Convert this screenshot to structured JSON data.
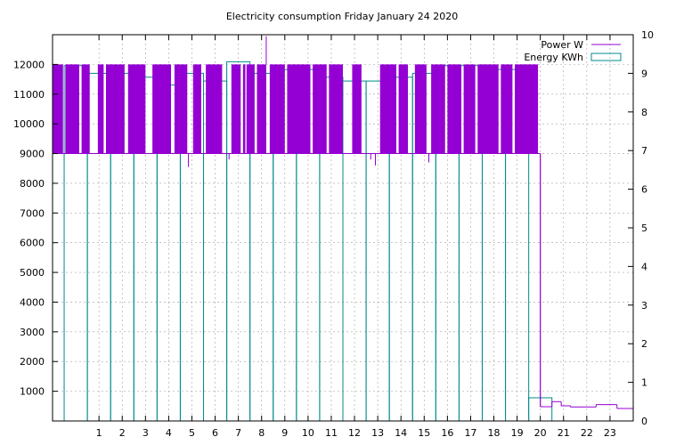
{
  "chart_data": {
    "type": "bar",
    "title": "Electricity consumption Friday January 24 2020",
    "xlim": [
      -1,
      24
    ],
    "xticks": [
      1,
      2,
      3,
      4,
      5,
      6,
      7,
      8,
      9,
      10,
      11,
      12,
      13,
      14,
      15,
      16,
      17,
      18,
      19,
      20,
      21,
      22,
      23
    ],
    "ylim_left": [
      0,
      13000
    ],
    "yticks_left": [
      1000,
      2000,
      3000,
      4000,
      5000,
      6000,
      7000,
      8000,
      9000,
      10000,
      11000,
      12000
    ],
    "ylim_right": [
      0,
      10
    ],
    "yticks_right": [
      0,
      1,
      2,
      3,
      4,
      5,
      6,
      7,
      8,
      9,
      10
    ],
    "grid": true,
    "legend_position": "top-right",
    "series": [
      {
        "name": "Power W",
        "axis": "left",
        "color": "#9400d3",
        "style": "dense-oscillation",
        "low": 9000,
        "high": 12000,
        "active_intervals": [
          [
            -1,
            -0.55
          ],
          [
            -0.45,
            0.15
          ],
          [
            0.25,
            0.6
          ],
          [
            0.95,
            1.2
          ],
          [
            1.3,
            2.1
          ],
          [
            2.25,
            3.0
          ],
          [
            3.3,
            4.1
          ],
          [
            4.25,
            4.8
          ],
          [
            5.05,
            5.4
          ],
          [
            5.6,
            6.3
          ],
          [
            6.7,
            7.1
          ],
          [
            7.2,
            7.3
          ],
          [
            7.35,
            7.7
          ],
          [
            7.8,
            8.2
          ],
          [
            8.35,
            9.0
          ],
          [
            9.1,
            10.1
          ],
          [
            10.2,
            10.8
          ],
          [
            10.9,
            11.5
          ],
          [
            11.9,
            12.3
          ],
          [
            13.1,
            13.8
          ],
          [
            13.9,
            14.3
          ],
          [
            14.6,
            15.1
          ],
          [
            15.3,
            15.9
          ],
          [
            16.0,
            16.6
          ],
          [
            16.7,
            17.2
          ],
          [
            17.3,
            18.2
          ],
          [
            18.3,
            18.8
          ],
          [
            18.9,
            19.9
          ]
        ],
        "base_segments": [
          [
            16.9,
            20.0,
            9000
          ],
          [
            20.0,
            20.5,
            480
          ],
          [
            20.5,
            20.9,
            650
          ],
          [
            20.9,
            21.3,
            510
          ],
          [
            21.3,
            22.4,
            470
          ],
          [
            22.4,
            23.3,
            550
          ],
          [
            23.3,
            24,
            420
          ]
        ],
        "dips": [
          {
            "x": 4.85,
            "y": 8550
          },
          {
            "x": 12.9,
            "y": 8600
          },
          {
            "x": 15.2,
            "y": 8700
          },
          {
            "x": 6.6,
            "y": 8800
          },
          {
            "x": 12.7,
            "y": 8800
          }
        ],
        "spikes": [
          {
            "x": 8.2,
            "y": 12950
          }
        ]
      },
      {
        "name": "Energy KWh",
        "axis": "right",
        "color": "#008b8b",
        "x": [
          0,
          1,
          2,
          3,
          4,
          5,
          6,
          7,
          8,
          9,
          10,
          11,
          12,
          13,
          14,
          15,
          16,
          17,
          18,
          19,
          20
        ],
        "values": [
          9.2,
          9.0,
          9.0,
          8.9,
          8.7,
          9.0,
          8.8,
          9.3,
          9.0,
          9.1,
          9.1,
          8.9,
          8.8,
          8.8,
          8.9,
          9.0,
          9.2,
          9.2,
          9.1,
          9.1,
          0.6
        ]
      }
    ]
  }
}
